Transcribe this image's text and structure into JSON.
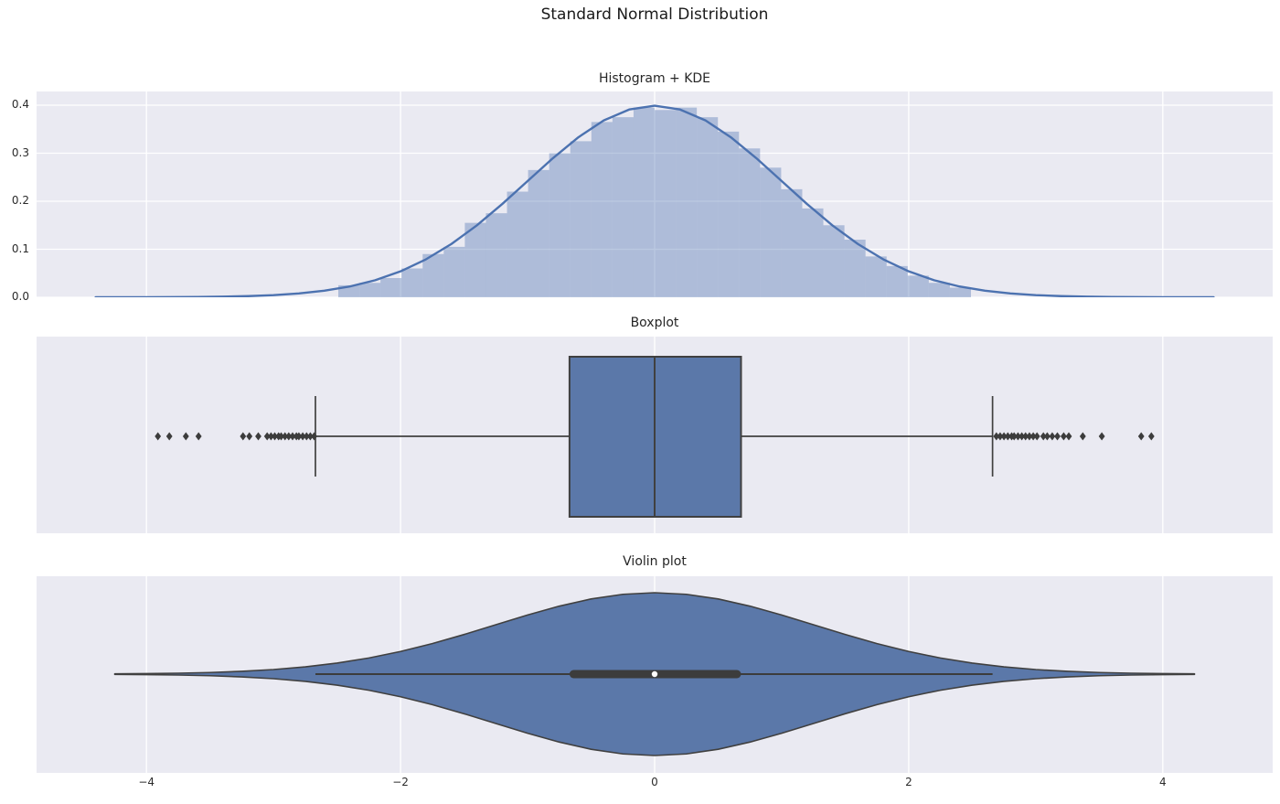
{
  "figure": {
    "title": "Standard Normal Distribution",
    "background": "#ffffff",
    "axes_background": "#eaeaf2",
    "grid_color": "#ffffff",
    "text_color": "#262626",
    "kde_line_color": "#4c72b0",
    "hist_fill_color": "#4c72b0",
    "hist_fill_alpha": 0.38,
    "body_fill_color": "#5b78a9",
    "edge_color": "#404040",
    "flier_color": "#3c3c3c"
  },
  "x_axis": {
    "min": -4.865,
    "max": 4.865,
    "ticks": [
      {
        "value": -4,
        "label": "−4"
      },
      {
        "value": -2,
        "label": "−2"
      },
      {
        "value": 0,
        "label": "0"
      },
      {
        "value": 2,
        "label": "2"
      },
      {
        "value": 4,
        "label": "4"
      }
    ]
  },
  "chart_data": [
    {
      "type": "histogram+kde",
      "title": "Histogram + KDE",
      "ylim": [
        0,
        0.4286
      ],
      "yticks": [
        {
          "value": 0.0,
          "label": "0.0"
        },
        {
          "value": 0.1,
          "label": "0.1"
        },
        {
          "value": 0.2,
          "label": "0.2"
        },
        {
          "value": 0.3,
          "label": "0.3"
        },
        {
          "value": 0.4,
          "label": "0.4"
        }
      ],
      "bins": {
        "start": -2.49,
        "width": 0.166,
        "heights": [
          0.025,
          0.03,
          0.04,
          0.06,
          0.09,
          0.105,
          0.155,
          0.175,
          0.22,
          0.265,
          0.3,
          0.325,
          0.365,
          0.375,
          0.395,
          0.39,
          0.395,
          0.375,
          0.345,
          0.31,
          0.27,
          0.225,
          0.185,
          0.15,
          0.12,
          0.085,
          0.065,
          0.045,
          0.03,
          0.02
        ]
      },
      "kde": {
        "x": [
          -4.4,
          -4.2,
          -4.0,
          -3.8,
          -3.6,
          -3.4,
          -3.2,
          -3.0,
          -2.8,
          -2.6,
          -2.4,
          -2.2,
          -2.0,
          -1.8,
          -1.6,
          -1.4,
          -1.2,
          -1.0,
          -0.8,
          -0.6,
          -0.4,
          -0.2,
          0.0,
          0.2,
          0.4,
          0.6,
          0.8,
          1.0,
          1.2,
          1.4,
          1.6,
          1.8,
          2.0,
          2.2,
          2.4,
          2.6,
          2.8,
          3.0,
          3.2,
          3.4,
          3.6,
          3.8,
          4.0,
          4.2,
          4.4
        ],
        "y": [
          0.0,
          0.0001,
          0.0001,
          0.0003,
          0.0006,
          0.0012,
          0.0024,
          0.0044,
          0.0079,
          0.0136,
          0.0224,
          0.0355,
          0.054,
          0.079,
          0.1109,
          0.1497,
          0.1942,
          0.242,
          0.2897,
          0.3332,
          0.3683,
          0.391,
          0.3989,
          0.391,
          0.3683,
          0.3332,
          0.2897,
          0.242,
          0.1942,
          0.1497,
          0.1109,
          0.079,
          0.054,
          0.0355,
          0.0224,
          0.0136,
          0.0079,
          0.0044,
          0.0024,
          0.0012,
          0.0006,
          0.0003,
          0.0001,
          0.0001,
          0.0
        ]
      }
    },
    {
      "type": "boxplot",
      "title": "Boxplot",
      "stats": {
        "q1": -0.67,
        "median": 0.0,
        "q3": 0.68,
        "whisker_low": -2.67,
        "whisker_high": 2.66
      },
      "outliers_low": [
        -3.91,
        -3.82,
        -3.69,
        -3.59,
        -3.24,
        -3.19,
        -3.12,
        -3.05,
        -3.02,
        -2.99,
        -2.96,
        -2.94,
        -2.91,
        -2.88,
        -2.85,
        -2.82,
        -2.8,
        -2.77,
        -2.74,
        -2.71,
        -2.68
      ],
      "outliers_high": [
        2.69,
        2.72,
        2.75,
        2.78,
        2.81,
        2.83,
        2.86,
        2.89,
        2.92,
        2.95,
        2.98,
        3.01,
        3.06,
        3.09,
        3.13,
        3.17,
        3.22,
        3.26,
        3.37,
        3.52,
        3.83,
        3.91
      ]
    },
    {
      "type": "violin",
      "title": "Violin plot",
      "inner": {
        "q1": -0.67,
        "median": 0.0,
        "q3": 0.68,
        "whisker_low": -2.67,
        "whisker_high": 2.66
      },
      "shape": {
        "x": [
          -4.25,
          -4.0,
          -3.75,
          -3.5,
          -3.25,
          -3.0,
          -2.75,
          -2.5,
          -2.25,
          -2.0,
          -1.75,
          -1.5,
          -1.25,
          -1.0,
          -0.75,
          -0.5,
          -0.25,
          0.0,
          0.25,
          0.5,
          0.75,
          1.0,
          1.25,
          1.5,
          1.75,
          2.0,
          2.25,
          2.5,
          2.75,
          3.0,
          3.25,
          3.5,
          3.75,
          4.0,
          4.25
        ],
        "halfwidth": [
          0.0031,
          0.006,
          0.0111,
          0.0198,
          0.034,
          0.0561,
          0.0889,
          0.1353,
          0.1979,
          0.278,
          0.3753,
          0.4868,
          0.6065,
          0.7261,
          0.8353,
          0.9231,
          0.9802,
          1.0,
          0.9802,
          0.9231,
          0.8353,
          0.7261,
          0.6065,
          0.4868,
          0.3753,
          0.278,
          0.1979,
          0.1353,
          0.0889,
          0.0561,
          0.034,
          0.0198,
          0.0111,
          0.006,
          0.0031
        ]
      }
    }
  ]
}
